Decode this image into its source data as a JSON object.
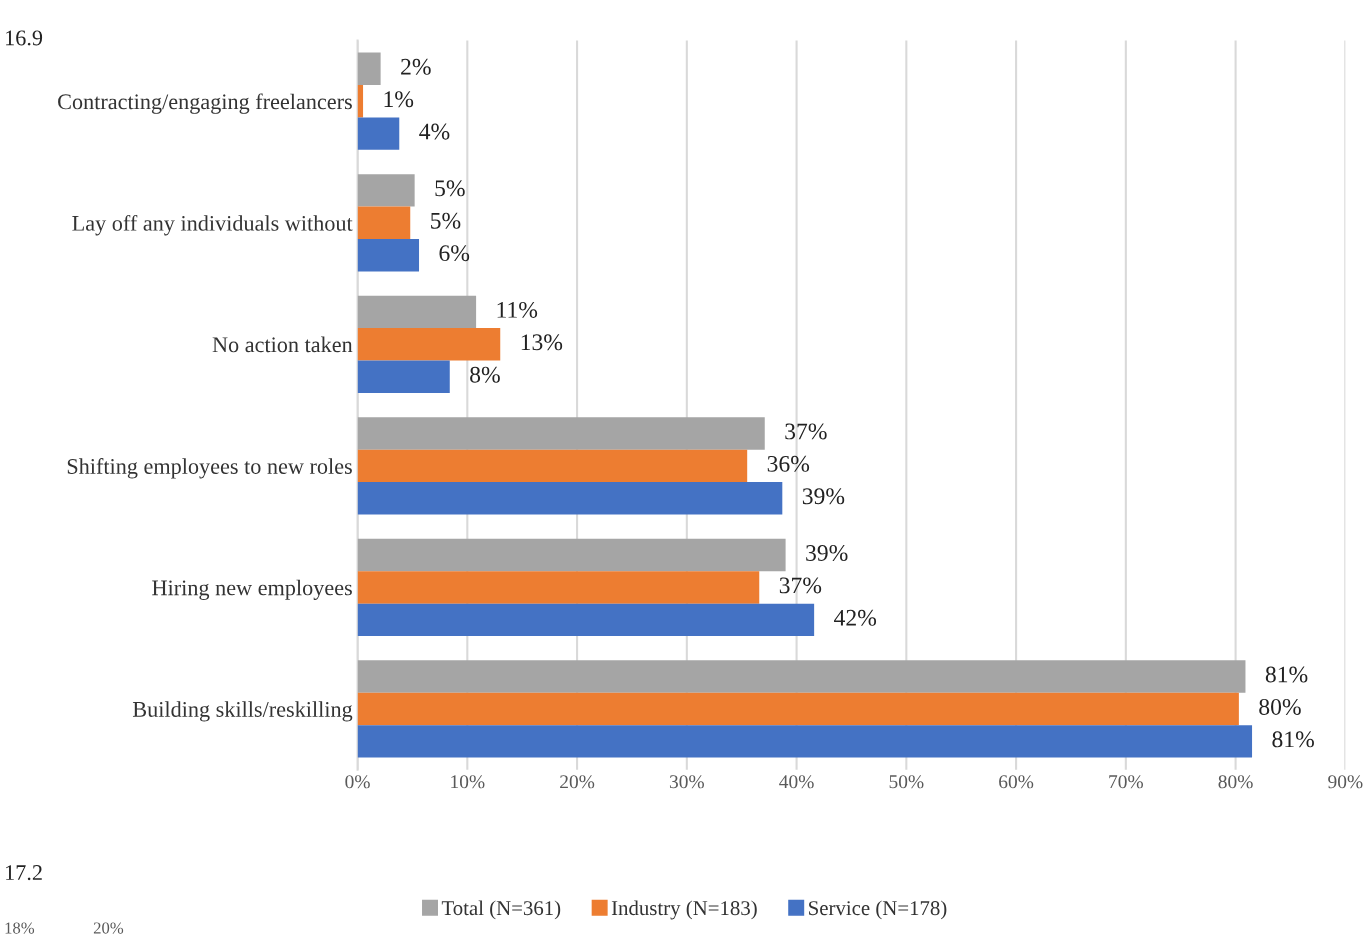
{
  "chart_data": {
    "type": "bar",
    "orientation": "horizontal",
    "categories": [
      "Contracting/engaging freelancers",
      "Lay off any individuals without",
      "No action taken",
      "Shifting employees to new roles",
      "Hiring new employees",
      "Building skills/reskilling"
    ],
    "series": [
      {
        "name": "Total (N=361)",
        "color": "#a5a5a5",
        "values": [
          2.1,
          5.2,
          10.8,
          37.1,
          39.0,
          80.9
        ],
        "value_labels": [
          "2%",
          "5%",
          "11%",
          "37%",
          "39%",
          "81%"
        ]
      },
      {
        "name": "Industry (N=183)",
        "color": "#ed7d31",
        "values": [
          0.5,
          4.8,
          13.0,
          35.5,
          36.6,
          80.3
        ],
        "value_labels": [
          "1%",
          "5%",
          "13%",
          "36%",
          "37%",
          "80%"
        ]
      },
      {
        "name": "Service (N=178)",
        "color": "#4472c4",
        "values": [
          3.8,
          5.6,
          8.4,
          38.7,
          41.6,
          81.5
        ],
        "value_labels": [
          "4%",
          "6%",
          "8%",
          "39%",
          "42%",
          "81%"
        ]
      }
    ],
    "xlim": [
      0,
      90
    ],
    "xticks": [
      {
        "value": 0,
        "label": "0%"
      },
      {
        "value": 10,
        "label": "10%"
      },
      {
        "value": 20,
        "label": "20%"
      },
      {
        "value": 30,
        "label": "30%"
      },
      {
        "value": 40,
        "label": "40%"
      },
      {
        "value": 50,
        "label": "50%"
      },
      {
        "value": 60,
        "label": "60%"
      },
      {
        "value": 70,
        "label": "70%"
      },
      {
        "value": 80,
        "label": "80%"
      },
      {
        "value": 90,
        "label": "90%"
      }
    ],
    "grid": "x",
    "legend": "bottom",
    "annotations": [
      "16.9",
      "17.2",
      "18%",
      "20%"
    ]
  }
}
